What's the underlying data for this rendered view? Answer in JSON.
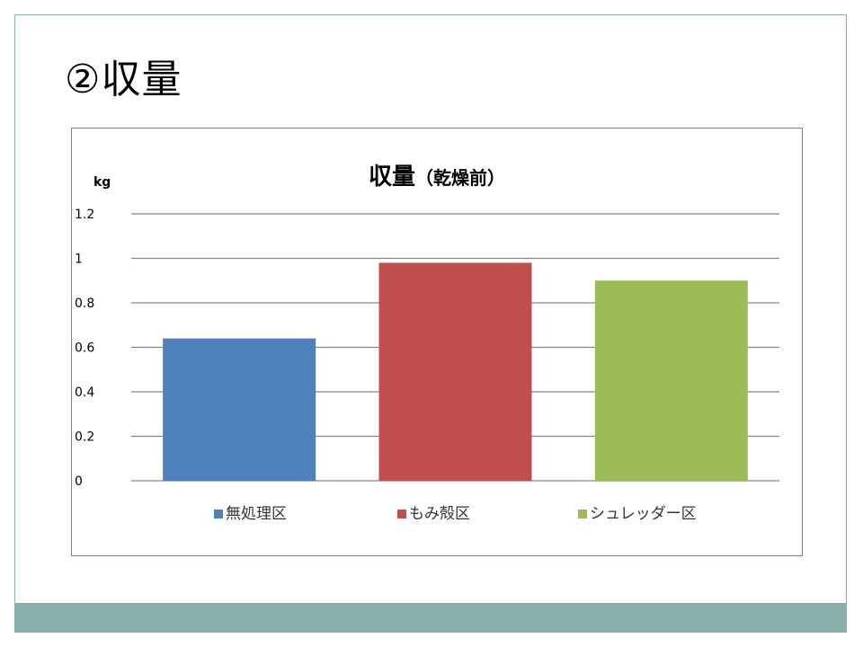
{
  "slide": {
    "title": "②収量"
  },
  "chart_data": {
    "type": "bar",
    "title_main": "収量",
    "title_sub": "（乾燥前）",
    "ylabel": "kg",
    "xlabel": "",
    "categories": [
      "無処理区",
      "もみ殻区",
      "シュレッダー区"
    ],
    "values": [
      0.64,
      0.98,
      0.9
    ],
    "colors": [
      "#4f81bd",
      "#c0504d",
      "#9bbb59"
    ],
    "ylim": [
      0,
      1.2
    ],
    "yticks": [
      "0",
      "0.2",
      "0.4",
      "0.6",
      "0.8",
      "1",
      "1.2"
    ],
    "ytick_values": [
      0,
      0.2,
      0.4,
      0.6,
      0.8,
      1,
      1.2
    ],
    "grid": true,
    "legend_position": "bottom"
  }
}
